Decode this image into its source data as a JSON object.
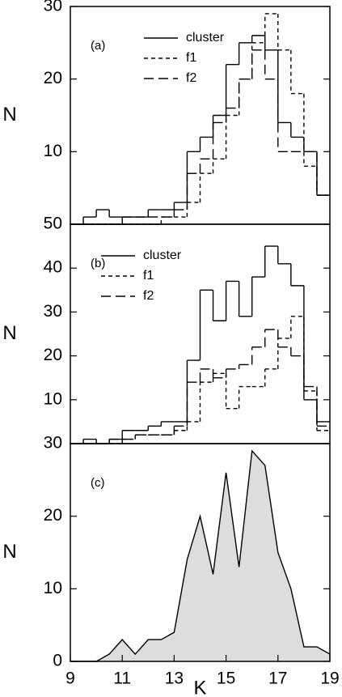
{
  "chart_data": [
    {
      "type": "histogram",
      "label": "(a)",
      "ylabel": "N",
      "legend": "upper center",
      "bins": [
        9,
        9.5,
        10,
        10.5,
        11,
        11.5,
        12,
        12.5,
        13,
        13.5,
        14,
        14.5,
        15,
        15.5,
        16,
        16.5,
        17,
        17.5,
        18,
        18.5,
        19
      ],
      "xlim": [
        9,
        19
      ],
      "ylim": [
        0,
        30
      ],
      "yticks": [
        10,
        20,
        30
      ],
      "series": [
        {
          "name": "cluster",
          "color": "#000000",
          "dash": "none",
          "values": [
            0,
            1,
            2,
            1,
            1,
            1,
            2,
            2,
            3,
            10,
            12,
            15,
            22,
            25,
            26,
            24,
            14,
            12,
            10,
            4
          ]
        },
        {
          "name": "f1",
          "color": "#000000",
          "dash": "5,4",
          "values": [
            0,
            0,
            0,
            0,
            0,
            0,
            0,
            1,
            1,
            3,
            7,
            9,
            15,
            20,
            25,
            29,
            24,
            18,
            8,
            4
          ]
        },
        {
          "name": "f2",
          "color": "#000000",
          "dash": "12,6",
          "values": [
            0,
            0,
            0,
            0,
            1,
            1,
            1,
            1,
            2,
            7,
            9,
            14,
            16,
            20,
            24,
            20,
            10,
            10,
            10,
            4
          ]
        }
      ]
    },
    {
      "type": "histogram",
      "label": "(b)",
      "ylabel": "N",
      "legend": "upper left",
      "bins": [
        9,
        9.5,
        10,
        10.5,
        11,
        11.5,
        12,
        12.5,
        13,
        13.5,
        14,
        14.5,
        15,
        15.5,
        16,
        16.5,
        17,
        17.5,
        18,
        18.5,
        19
      ],
      "xlim": [
        9,
        19
      ],
      "ylim": [
        0,
        50
      ],
      "yticks": [
        10,
        20,
        30,
        40,
        50
      ],
      "series": [
        {
          "name": "cluster",
          "color": "#000000",
          "dash": "none",
          "values": [
            0,
            1,
            0,
            1,
            3,
            3,
            4,
            5,
            5,
            19,
            35,
            28,
            37,
            29,
            38,
            45,
            41,
            36,
            10,
            5
          ]
        },
        {
          "name": "f1",
          "color": "#000000",
          "dash": "5,4",
          "values": [
            0,
            0,
            0,
            0,
            1,
            2,
            2,
            2,
            3,
            5,
            14,
            16,
            8,
            13,
            13,
            17,
            24,
            29,
            12,
            3
          ]
        },
        {
          "name": "f2",
          "color": "#000000",
          "dash": "12,6",
          "values": [
            0,
            0,
            0,
            1,
            1,
            2,
            2,
            2,
            4,
            14,
            17,
            15,
            17,
            18,
            22,
            26,
            22,
            20,
            13,
            4
          ]
        }
      ]
    },
    {
      "type": "area",
      "label": "(c)",
      "ylabel": "N",
      "xlabel": "K",
      "color": "#dddddd",
      "x": [
        9,
        10,
        10.5,
        11,
        11.5,
        12,
        12.5,
        13,
        13.5,
        14,
        14.5,
        15,
        15.5,
        16,
        16.5,
        17,
        17.5,
        18,
        18.5,
        19
      ],
      "values": [
        0,
        0,
        1,
        3,
        1,
        3,
        3,
        4,
        14,
        20,
        12,
        26,
        13,
        29,
        27,
        15,
        10,
        2,
        2,
        1
      ],
      "xlim": [
        9,
        19
      ],
      "ylim": [
        0,
        30
      ],
      "yticks": [
        0,
        10,
        20,
        30
      ],
      "xticks": [
        9,
        11,
        13,
        15,
        17,
        19
      ]
    }
  ]
}
